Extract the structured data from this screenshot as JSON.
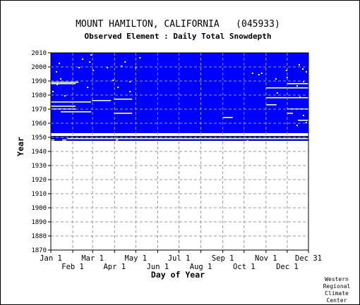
{
  "chart_data": {
    "type": "heatmap",
    "title": "MOUNT HAMILTON, CALIFORNIA   (045933)",
    "subtitle": "Observed Element : Daily Total Snowdepth",
    "xlabel": "Day of Year",
    "ylabel": "Year",
    "xlim": [
      1,
      365
    ],
    "ylim": [
      1870,
      2010
    ],
    "grid": true,
    "x_ticks_upper": [
      {
        "label": "Jan 1",
        "day": 1
      },
      {
        "label": "Mar 1",
        "day": 60
      },
      {
        "label": "May 1",
        "day": 121
      },
      {
        "label": "Jul 1",
        "day": 182
      },
      {
        "label": "Sep 1",
        "day": 244
      },
      {
        "label": "Nov 1",
        "day": 305
      },
      {
        "label": "Dec 31",
        "day": 365
      }
    ],
    "x_ticks_lower": [
      {
        "label": "Feb 1",
        "day": 32
      },
      {
        "label": "Apr 1",
        "day": 91
      },
      {
        "label": "Jun 1",
        "day": 152
      },
      {
        "label": "Aug 1",
        "day": 213
      },
      {
        "label": "Oct 1",
        "day": 274
      },
      {
        "label": "Dec 1",
        "day": 335
      }
    ],
    "y_ticks": [
      2010,
      2000,
      1990,
      1980,
      1970,
      1960,
      1950,
      1940,
      1930,
      1920,
      1910,
      1900,
      1890,
      1880,
      1870
    ],
    "observed_color": "#0000ff",
    "observed_blocks": [
      {
        "day_start": 1,
        "day_end": 365,
        "year_start": 1953,
        "year_end": 2010
      },
      {
        "day_start": 1,
        "day_end": 365,
        "year_start": 1947,
        "year_end": 1951
      }
    ],
    "missing_runs": [
      {
        "year": 1989,
        "day_start": 1,
        "day_end": 40
      },
      {
        "year": 1988,
        "day_start": 1,
        "day_end": 36
      },
      {
        "year": 1975,
        "day_start": 1,
        "day_end": 58
      },
      {
        "year": 1972,
        "day_start": 1,
        "day_end": 36
      },
      {
        "year": 1970,
        "day_start": 1,
        "day_end": 36
      },
      {
        "year": 1968,
        "day_start": 15,
        "day_end": 58
      },
      {
        "year": 1976,
        "day_start": 59,
        "day_end": 86
      },
      {
        "year": 1977,
        "day_start": 90,
        "day_end": 116
      },
      {
        "year": 1967,
        "day_start": 90,
        "day_end": 116
      },
      {
        "year": 1964,
        "day_start": 244,
        "day_end": 258
      },
      {
        "year": 1985,
        "day_start": 305,
        "day_end": 365
      },
      {
        "year": 1988,
        "day_start": 335,
        "day_end": 365
      },
      {
        "year": 1978,
        "day_start": 305,
        "day_end": 365
      },
      {
        "year": 1973,
        "day_start": 305,
        "day_end": 320
      },
      {
        "year": 1970,
        "day_start": 335,
        "day_end": 365
      },
      {
        "year": 1962,
        "day_start": 350,
        "day_end": 365
      },
      {
        "year": 1967,
        "day_start": 335,
        "day_end": 343
      },
      {
        "year": 1948,
        "day_start": 1,
        "day_end": 6
      },
      {
        "year": 1948,
        "day_start": 17,
        "day_end": 23
      },
      {
        "year": 1949,
        "day_start": 24,
        "day_end": 365
      },
      {
        "year": 1948,
        "day_start": 93,
        "day_end": 96
      },
      {
        "year": 1947,
        "day_start": 1,
        "day_end": 365
      },
      {
        "year": 1947,
        "day_start": 1,
        "day_end": 155
      }
    ],
    "missing_dots": [
      [
        14,
        1992
      ],
      [
        12,
        2003
      ],
      [
        45,
        2006
      ],
      [
        57,
        2009
      ],
      [
        55,
        2004
      ],
      [
        60,
        1998
      ],
      [
        80,
        2000
      ],
      [
        100,
        2001
      ],
      [
        105,
        2004
      ],
      [
        88,
        1991
      ],
      [
        95,
        1986
      ],
      [
        112,
        1990
      ],
      [
        120,
        2000
      ],
      [
        126,
        2007
      ],
      [
        40,
        2000
      ],
      [
        52,
        1986
      ],
      [
        3,
        1983
      ],
      [
        8,
        1997
      ],
      [
        20,
        1980
      ],
      [
        9,
        1988
      ],
      [
        112,
        1983
      ],
      [
        285,
        1996
      ],
      [
        294,
        1995
      ],
      [
        298,
        1996
      ],
      [
        318,
        1992
      ],
      [
        333,
        1998
      ],
      [
        348,
        1987
      ],
      [
        351,
        2002
      ],
      [
        356,
        1999
      ],
      [
        361,
        1997
      ],
      [
        357,
        1990
      ],
      [
        334,
        1993
      ],
      [
        320,
        1982
      ],
      [
        352,
        1979
      ],
      [
        357,
        1966
      ],
      [
        361,
        1961
      ],
      [
        260,
        1953
      ],
      [
        278,
        1948
      ],
      [
        348,
        1959
      ]
    ]
  },
  "credit": [
    "Western",
    "Regional",
    "Climate",
    "Center"
  ]
}
